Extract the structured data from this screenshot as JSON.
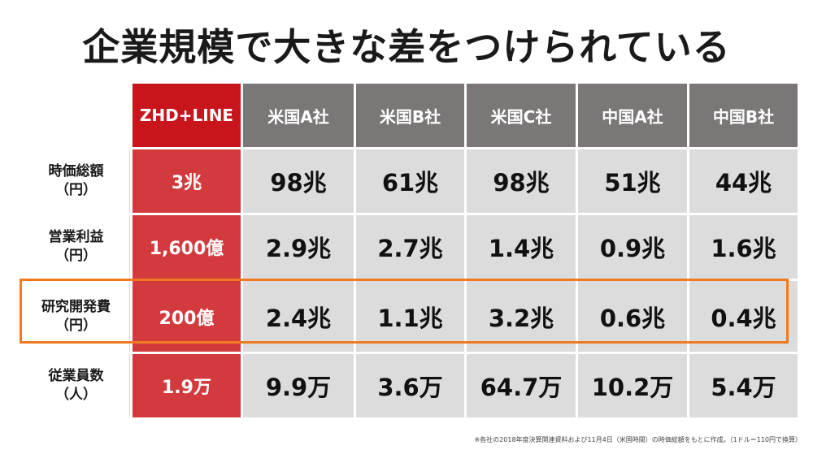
{
  "title": "企業規模で大きな差をつけられている",
  "columns": [
    "ZHD+LINE",
    "米国A社",
    "米国B社",
    "米国C社",
    "中国A社",
    "中国B社"
  ],
  "rows": [
    {
      "label_line1": "時価総額",
      "label_line2": "（円）",
      "values": [
        "3兆",
        "98兆",
        "61兆",
        "98兆",
        "51兆",
        "44兆"
      ]
    },
    {
      "label_line1": "営業利益",
      "label_line2": "（円）",
      "values": [
        "1,600億",
        "2.9兆",
        "2.7兆",
        "1.4兆",
        "0.9兆",
        "1.6兆"
      ]
    },
    {
      "label_line1": "研究開発費",
      "label_line2": "（円）",
      "values": [
        "200億",
        "2.4兆",
        "1.1兆",
        "3.2兆",
        "0.6兆",
        "0.4兆"
      ]
    },
    {
      "label_line1": "従業員数",
      "label_line2": "（人）",
      "values": [
        "1.9万",
        "9.9万",
        "3.6万",
        "64.7万",
        "10.2万",
        "5.4万"
      ]
    }
  ],
  "footnote": "※各社の2018年度決算関連資料および11月4日（米国時間）の時価総額をもとに作成。（1ドル＝110円で換算）",
  "colors": {
    "accent_red": "#c8151c",
    "highlight_orange": "#f07a22",
    "header_gray": "#7b7777",
    "cell_gray": "#dcdcdc"
  }
}
